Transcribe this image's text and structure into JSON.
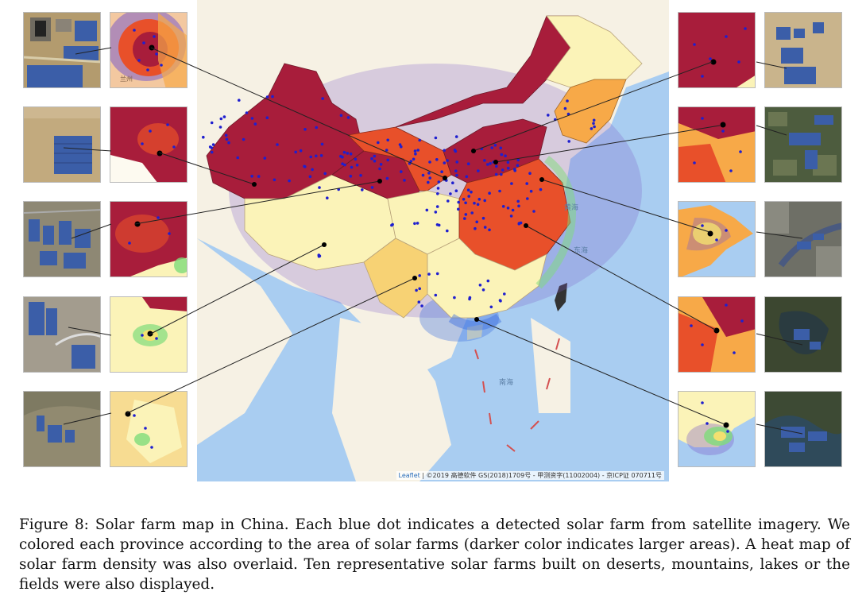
{
  "figure": {
    "label": "Figure 8:",
    "caption": "Solar farm map in China. Each blue dot indicates a detected solar farm from satellite imagery. We colored each province according to the area of solar farms (darker color indicates larger areas). A heat map of solar farm density was also overlaid. Ten representative solar farms built on deserts, mountains, lakes or the fields were also displayed."
  },
  "map": {
    "attribution_link": "Leaflet",
    "attribution_text": " | ©2019 高德软件 GS(2018)1709号 - 甲测资字(11002004) - 京ICP证 070711号",
    "sea_labels": [
      "黄海",
      "东海",
      "南海"
    ],
    "thumb_place_label": "兰州"
  },
  "colors": {
    "sea": "#a9cdf1",
    "land_other": "#f6f1e4",
    "low_area": "#fbf3b8",
    "mid_area": "#f7a948",
    "high_area": "#e8502a",
    "top_area": "#a81d3b",
    "dot": "#1f1fcf",
    "panel": "#3b5ea8"
  }
}
